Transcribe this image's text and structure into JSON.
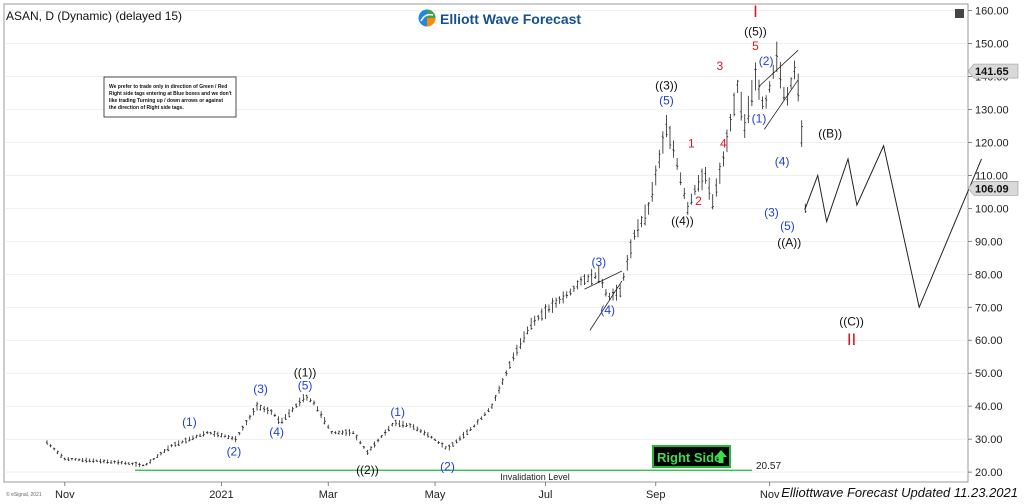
{
  "header": {
    "symbol_title": "ASAN, D (Dynamic) (delayed 15)",
    "brand": "Elliott Wave Forecast"
  },
  "disclaimer": [
    "We prefer to trade only in direction of Green / Red",
    "Right side tags entering at Blue boxes and we don't",
    "like trading Turning up / down arrows or against",
    "the direction of Right side tags."
  ],
  "footer": {
    "updated": "Elliottwave Forecast Updated 11.23.2021",
    "esignal": "© eSignal, 2021"
  },
  "right_side_tag": "Right Side",
  "invalidation": {
    "label": "Invalidation Level",
    "value": "20.57"
  },
  "price_tags": {
    "upper": "141.65",
    "lower": "106.09"
  },
  "colors": {
    "blue": "#1f3fd8",
    "red": "#e0141e",
    "green": "#22b83a",
    "tag_bg": "#e0e0e0",
    "grid": "#e6e6e6"
  },
  "chart_data": {
    "type": "line",
    "x_axis": [
      "Nov",
      "2021",
      "Mar",
      "May",
      "Jul",
      "Sep",
      "Nov"
    ],
    "y_ticks": [
      "160.00",
      "150.00",
      "140.00",
      "130.00",
      "120.00",
      "110.00",
      "100.00",
      "90.00",
      "80.00",
      "70.00",
      "60.00",
      "50.00",
      "40.00",
      "30.00",
      "20.00"
    ],
    "ylim": [
      17,
      162
    ],
    "price_path": [
      {
        "d": 0,
        "v": 29
      },
      {
        "d": 10,
        "v": 24
      },
      {
        "d": 40,
        "v": 23
      },
      {
        "d": 55,
        "v": 22
      },
      {
        "d": 70,
        "v": 28
      },
      {
        "d": 90,
        "v": 32
      },
      {
        "d": 100,
        "v": 31
      },
      {
        "d": 106,
        "v": 30
      },
      {
        "d": 118,
        "v": 40
      },
      {
        "d": 127,
        "v": 38
      },
      {
        "d": 131,
        "v": 35
      },
      {
        "d": 145,
        "v": 43
      },
      {
        "d": 150,
        "v": 41
      },
      {
        "d": 160,
        "v": 32
      },
      {
        "d": 172,
        "v": 32
      },
      {
        "d": 180,
        "v": 26
      },
      {
        "d": 195,
        "v": 35
      },
      {
        "d": 205,
        "v": 34
      },
      {
        "d": 215,
        "v": 31
      },
      {
        "d": 225,
        "v": 27
      },
      {
        "d": 240,
        "v": 34
      },
      {
        "d": 250,
        "v": 40
      },
      {
        "d": 262,
        "v": 55
      },
      {
        "d": 272,
        "v": 65
      },
      {
        "d": 285,
        "v": 71
      },
      {
        "d": 295,
        "v": 75
      },
      {
        "d": 300,
        "v": 78
      },
      {
        "d": 310,
        "v": 80
      },
      {
        "d": 315,
        "v": 73
      },
      {
        "d": 322,
        "v": 75
      },
      {
        "d": 330,
        "v": 92
      },
      {
        "d": 338,
        "v": 100
      },
      {
        "d": 348,
        "v": 125
      },
      {
        "d": 352,
        "v": 118
      },
      {
        "d": 360,
        "v": 100
      },
      {
        "d": 365,
        "v": 107
      },
      {
        "d": 370,
        "v": 110
      },
      {
        "d": 374,
        "v": 102
      },
      {
        "d": 380,
        "v": 115
      },
      {
        "d": 388,
        "v": 137
      },
      {
        "d": 392,
        "v": 125
      },
      {
        "d": 398,
        "v": 140
      },
      {
        "d": 403,
        "v": 130
      },
      {
        "d": 410,
        "v": 146
      },
      {
        "d": 415,
        "v": 132
      },
      {
        "d": 420,
        "v": 142
      },
      {
        "d": 423,
        "v": 134
      },
      {
        "d": 426,
        "v": 100
      }
    ],
    "projection": [
      {
        "d": 426,
        "v": 100
      },
      {
        "d": 433,
        "v": 110
      },
      {
        "d": 438,
        "v": 96
      },
      {
        "d": 450,
        "v": 115
      },
      {
        "d": 455,
        "v": 101
      },
      {
        "d": 470,
        "v": 119
      },
      {
        "d": 490,
        "v": 70
      },
      {
        "d": 525,
        "v": 115
      }
    ],
    "invalidation_level": 20.57,
    "wave_labels": [
      {
        "text": "(1)",
        "color": "blue",
        "d": 80,
        "v": 34
      },
      {
        "text": "(2)",
        "color": "blue",
        "d": 105,
        "v": 25
      },
      {
        "text": "(3)",
        "color": "blue",
        "d": 120,
        "v": 44
      },
      {
        "text": "(4)",
        "color": "blue",
        "d": 129,
        "v": 31
      },
      {
        "text": "((1))",
        "color": "black",
        "d": 145,
        "v": 49
      },
      {
        "text": "(5)",
        "color": "blue",
        "d": 145,
        "v": 45
      },
      {
        "text": "((2))",
        "color": "black",
        "d": 180,
        "v": 19.5
      },
      {
        "text": "(1)",
        "color": "blue",
        "d": 197,
        "v": 37
      },
      {
        "text": "(2)",
        "color": "blue",
        "d": 225,
        "v": 20.5
      },
      {
        "text": "(3)",
        "color": "blue",
        "d": 310,
        "v": 82.5
      },
      {
        "text": "(4)",
        "color": "blue",
        "d": 315,
        "v": 68
      },
      {
        "text": "((3))",
        "color": "black",
        "d": 348,
        "v": 136
      },
      {
        "text": "(5)",
        "color": "blue",
        "d": 348,
        "v": 131.5
      },
      {
        "text": "((4))",
        "color": "black",
        "d": 357,
        "v": 95
      },
      {
        "text": "1",
        "color": "red",
        "d": 362,
        "v": 118.5
      },
      {
        "text": "2",
        "color": "red",
        "d": 366,
        "v": 101
      },
      {
        "text": "3",
        "color": "red",
        "d": 378,
        "v": 142
      },
      {
        "text": "4",
        "color": "red",
        "d": 380,
        "v": 118.5
      },
      {
        "text": "I",
        "color": "red",
        "d": 398,
        "v": 158
      },
      {
        "text": "((5))",
        "color": "black",
        "d": 398,
        "v": 152.5
      },
      {
        "text": "5",
        "color": "red",
        "d": 398,
        "v": 148
      },
      {
        "text": "(2)",
        "color": "blue",
        "d": 404,
        "v": 143.5
      },
      {
        "text": "(1)",
        "color": "blue",
        "d": 400,
        "v": 126
      },
      {
        "text": "(4)",
        "color": "blue",
        "d": 413,
        "v": 113
      },
      {
        "text": "(3)",
        "color": "blue",
        "d": 407,
        "v": 97.5
      },
      {
        "text": "(5)",
        "color": "blue",
        "d": 416,
        "v": 93.5
      },
      {
        "text": "((A))",
        "color": "black",
        "d": 417,
        "v": 88.5
      },
      {
        "text": "((B))",
        "color": "black",
        "d": 440,
        "v": 121.5
      },
      {
        "text": "((C))",
        "color": "black",
        "d": 452,
        "v": 64.5
      },
      {
        "text": "II",
        "color": "red",
        "d": 452,
        "v": 58.5
      }
    ]
  }
}
